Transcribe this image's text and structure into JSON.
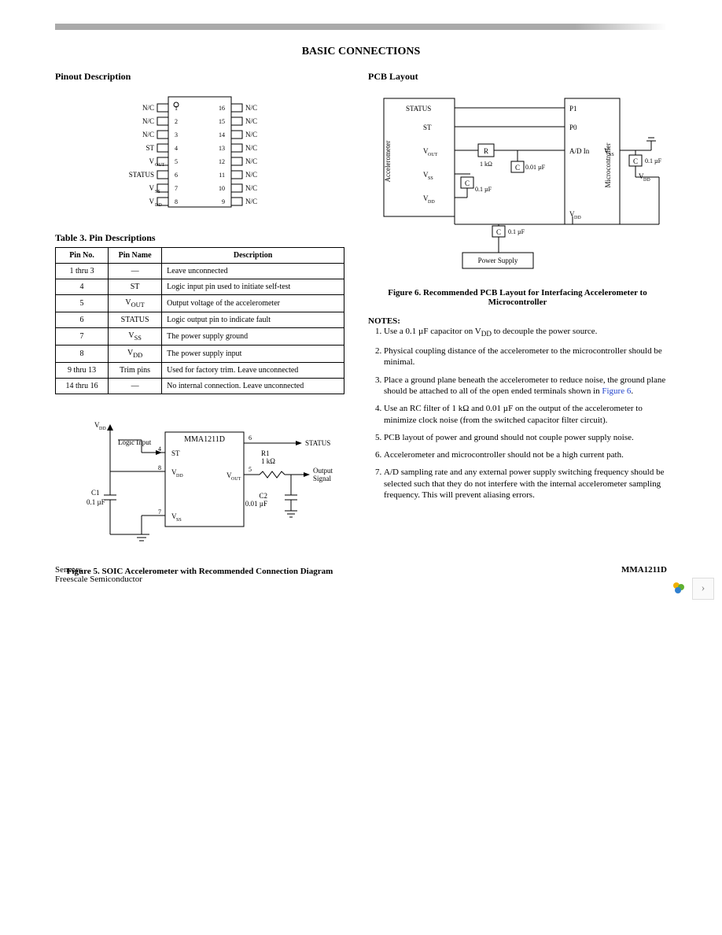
{
  "title": "BASIC CONNECTIONS",
  "left": {
    "pinout_heading": "Pinout Description",
    "pinout": {
      "left_labels": [
        "N/C",
        "N/C",
        "N/C",
        "ST",
        "V",
        "STATUS",
        "V",
        "V"
      ],
      "left_sub": [
        "",
        "",
        "",
        "",
        "OUT",
        "",
        "SS",
        "DD"
      ],
      "left_nums": [
        1,
        2,
        3,
        4,
        5,
        6,
        7,
        8
      ],
      "right_nums": [
        16,
        15,
        14,
        13,
        12,
        11,
        10,
        9
      ],
      "right_labels": [
        "N/C",
        "N/C",
        "N/C",
        "N/C",
        "N/C",
        "N/C",
        "N/C",
        "N/C"
      ]
    },
    "table_caption": "Table 3. Pin Descriptions",
    "table_headers": [
      "Pin No.",
      "Pin Name",
      "Description"
    ],
    "table_rows": [
      {
        "no": "1 thru 3",
        "name": "—",
        "desc": "Leave unconnected"
      },
      {
        "no": "4",
        "name": "ST",
        "desc": "Logic input pin used to initiate self-test"
      },
      {
        "no": "5",
        "name": "V<sub>OUT</sub>",
        "desc": "Output voltage of the accelerometer"
      },
      {
        "no": "6",
        "name": "STATUS",
        "desc": "Logic output pin to indicate fault"
      },
      {
        "no": "7",
        "name": "V<sub>SS</sub>",
        "desc": "The power supply ground"
      },
      {
        "no": "8",
        "name": "V<sub>DD</sub>",
        "desc": "The power supply input"
      },
      {
        "no": "9 thru 13",
        "name": "Trim pins",
        "desc": "Used for factory trim. Leave unconnected"
      },
      {
        "no": "14 thru 16",
        "name": "—",
        "desc": "No internal connection. Leave unconnected"
      }
    ],
    "fig5": {
      "chip": "MMA1211D",
      "vdd": "V",
      "vdd_sub": "DD",
      "logic": "Logic Input",
      "st": "ST",
      "vss": "V",
      "vss_sub": "SS",
      "c1": "C1",
      "c1_val": "0.1 µF",
      "status": "STATUS",
      "vout": "V",
      "vout_sub": "OUT",
      "r1": "R1",
      "r1_val": "1 kΩ",
      "c2": "C2",
      "c2_val": "0.01 µF",
      "out_sig": "Output Signal",
      "pins": {
        "4": "4",
        "6": "6",
        "7": "7",
        "8": "8",
        "5": "5"
      }
    },
    "fig5_caption": "Figure 5. SOIC Accelerometer with Recommended Connection Diagram"
  },
  "right": {
    "pcb_heading": "PCB Layout",
    "fig6": {
      "accel": "Accelerometer",
      "mcu": "Microcontroller",
      "status": "STATUS",
      "st": "ST",
      "vout": "V",
      "vout_sub": "OUT",
      "vss": "V",
      "vss_sub": "SS",
      "vdd": "V",
      "vdd_sub": "DD",
      "p1": "P1",
      "p0": "P0",
      "adin": "A/D In",
      "r": "R",
      "r_val": "1 kΩ",
      "c": "C",
      "c01": "0.01 µF",
      "c1": "0.1 µF",
      "ps": "Power Supply"
    },
    "fig6_caption": "Figure 6. Recommended PCB Layout for Interfacing Accelerometer to Microcontroller",
    "notes_title": "NOTES:",
    "notes": [
      "Use a 0.1 µF capacitor on V<sub>DD</sub> to decouple the power source.",
      "Physical coupling distance of the accelerometer to the microcontroller should be minimal.",
      "Place a ground plane beneath the accelerometer to reduce noise, the ground plane should be attached to all of the open ended terminals shown in <span class='link'>Figure 6</span>.",
      "Use an RC filter of 1 kΩ and 0.01 µF on the output of the accelerometer to minimize clock noise (from the switched capacitor filter circuit).",
      "PCB layout of power and ground should not couple power supply noise.",
      "Accelerometer and microcontroller should not be a high current path.",
      "A/D sampling rate and any external power supply switching frequency should be selected such that they do not interfere with the internal accelerometer sampling frequency. This will prevent aliasing errors."
    ]
  },
  "footer": {
    "left1": "Sensors",
    "left2": "Freescale Semiconductor",
    "right": "MMA1211D"
  }
}
